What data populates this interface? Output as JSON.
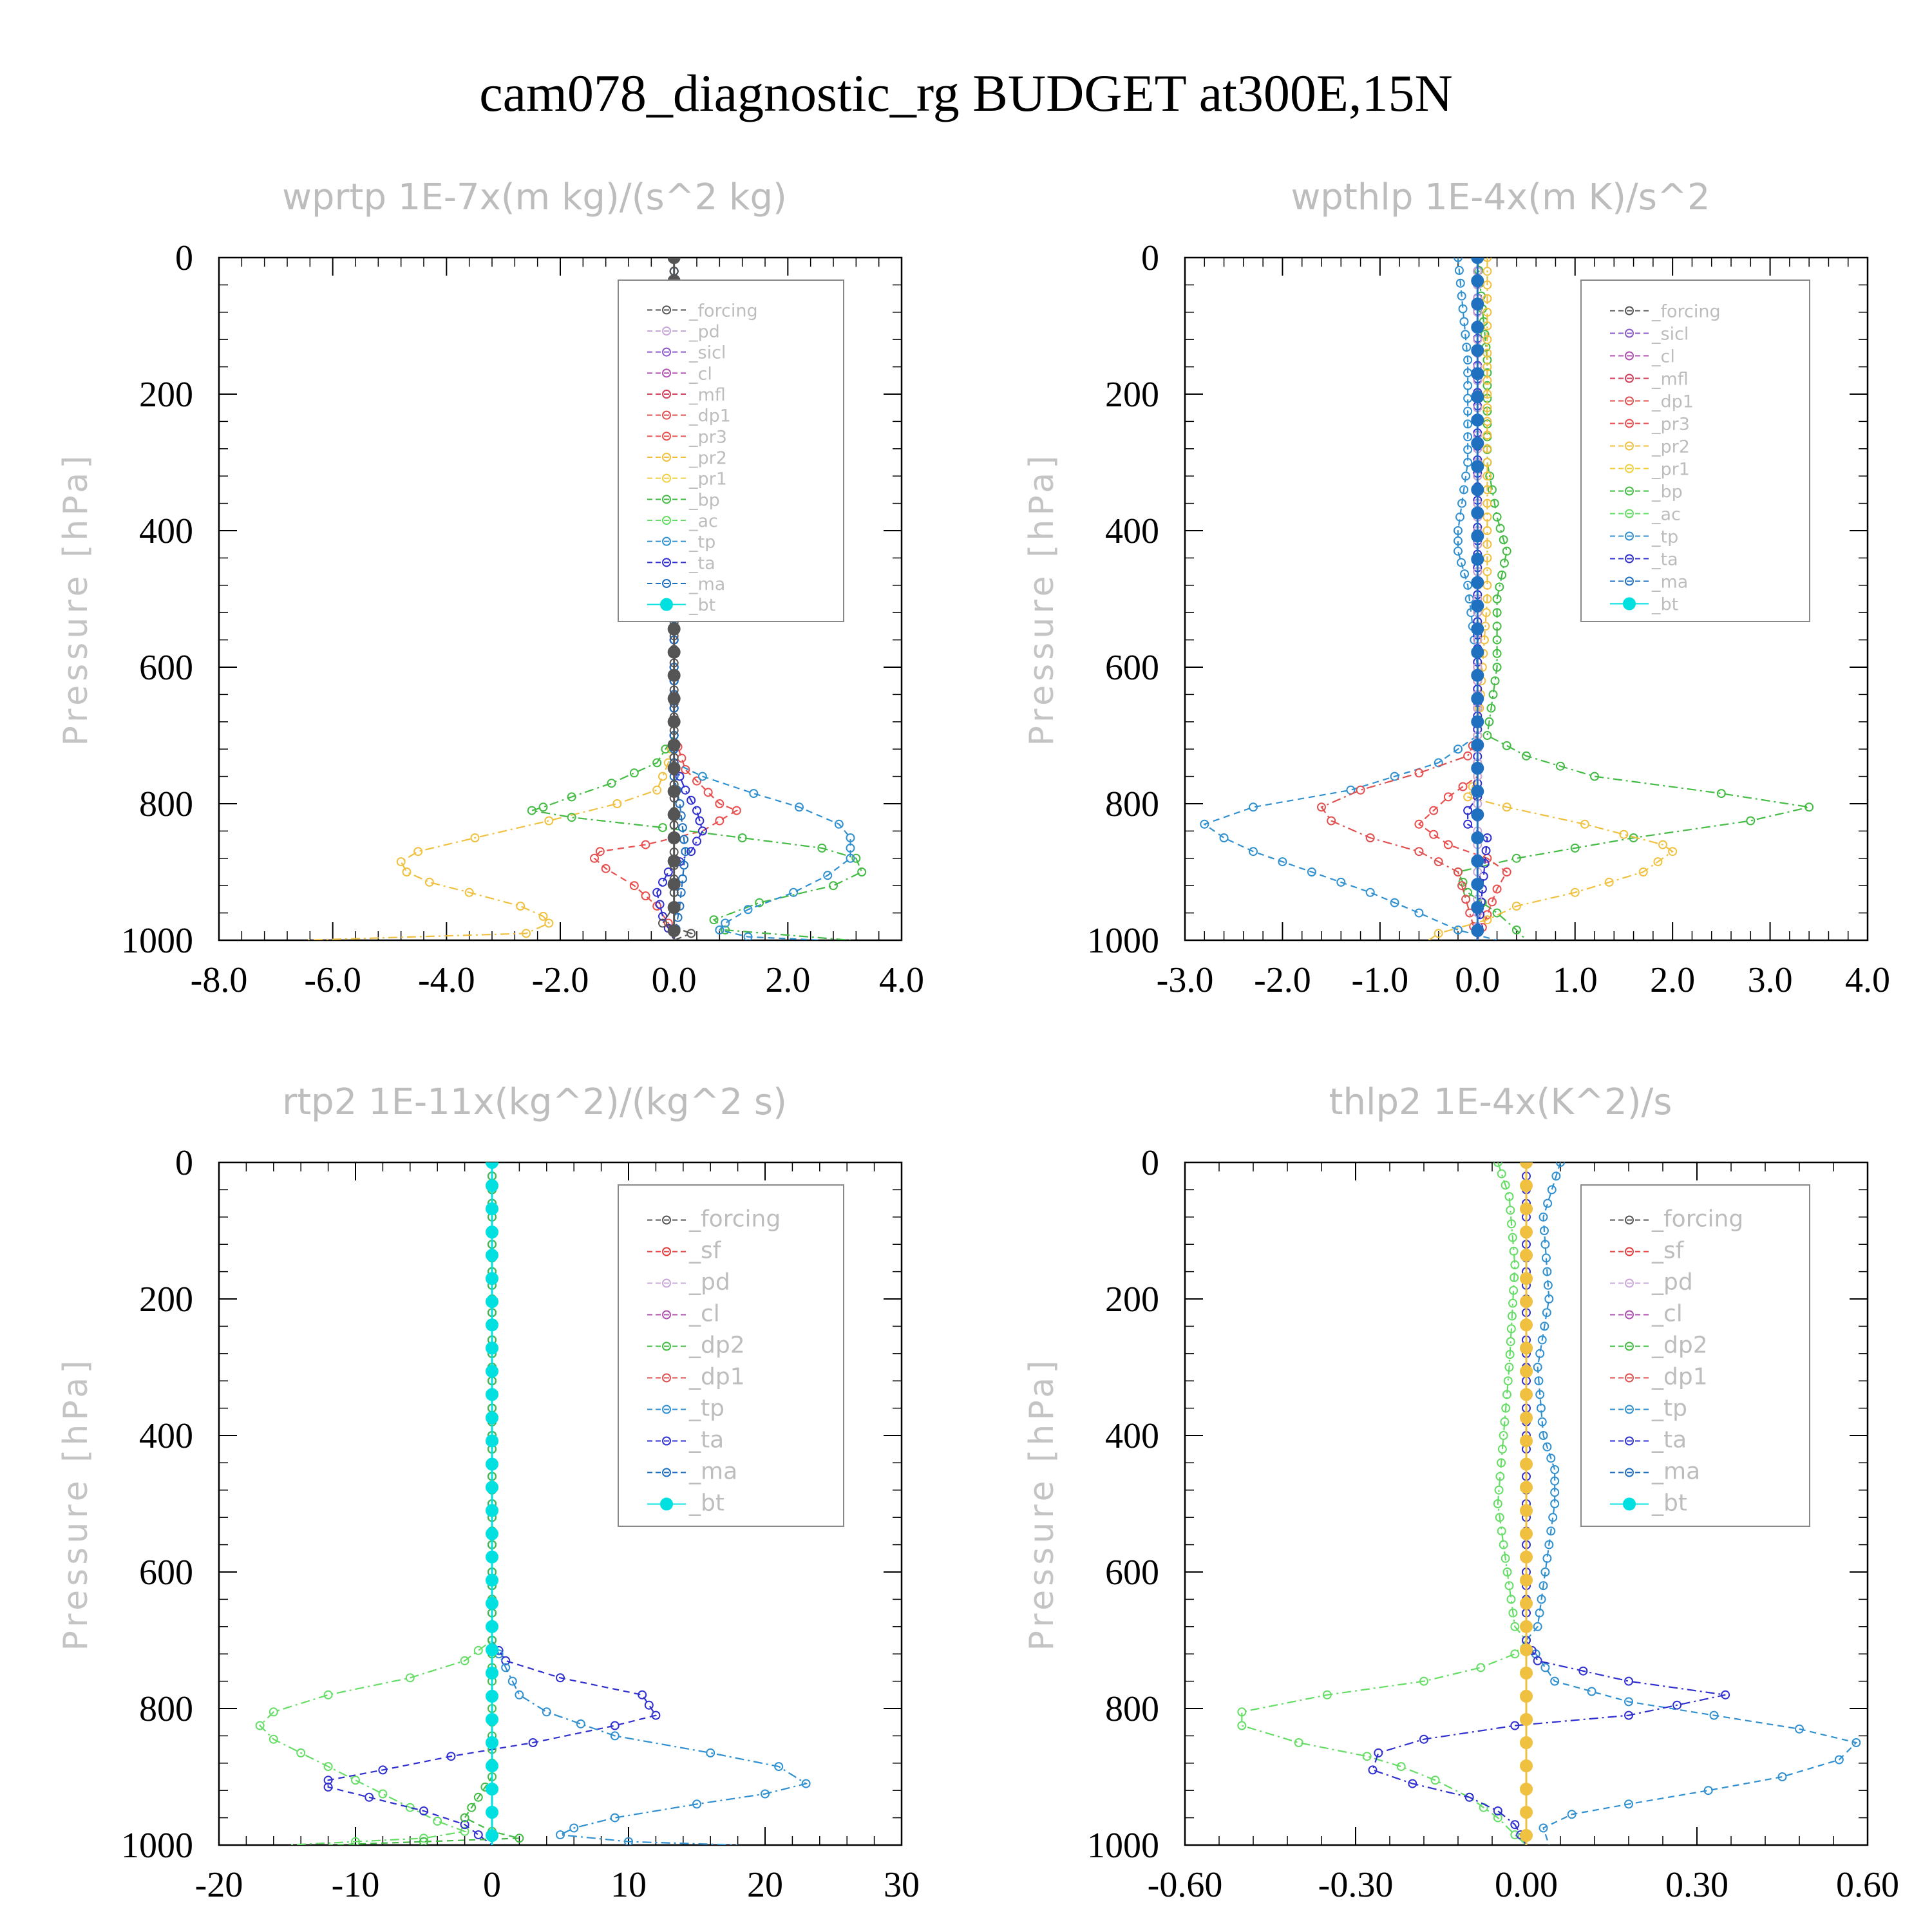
{
  "title": "cam078_diagnostic_rg  BUDGET at300E,15N",
  "colors": {
    "frame": "#000000",
    "_forcing": "#555555",
    "_forcing2": "#e04848",
    "_pd": "#c8a8d8",
    "_sicl": "#8a5ac8",
    "_cl": "#b050b0",
    "_mfl": "#d0405a",
    "_dp1": "#e05050",
    "_dp2": "#44bb44",
    "_sf": "#e04040",
    "_pr3": "#e85050",
    "_pr2": "#f0c040",
    "_pr1": "#f0d040",
    "_bp": "#44bb44",
    "_ac": "#66dd66",
    "_tp": "#3090d0",
    "_ta": "#3030d0",
    "_ma": "#2070c0",
    "_bt": "#00e0e0"
  },
  "chart_data": [
    {
      "id": "wprtp",
      "type": "line",
      "title": "wprtp   1E-7x(m kg)/(s^2 kg)",
      "ylabel": "Pressure [hPa]",
      "xlim": [
        -8,
        4
      ],
      "ylim": [
        0,
        1000
      ],
      "y_inverted": true,
      "xticks": [
        -8,
        -6,
        -4,
        -2,
        0,
        2,
        4
      ],
      "xtick_labels": [
        "-8.0",
        "-6.0",
        "-4.0",
        "-2.0",
        "0.0",
        "2.0",
        "4.0"
      ],
      "yticks": [
        0,
        200,
        400,
        600,
        800,
        1000
      ],
      "ytick_labels": [
        "0",
        "200",
        "400",
        "600",
        "800",
        "1000"
      ],
      "legend": {
        "position": "upper-right",
        "entries": [
          "_forcing",
          "_pd",
          "_sicl",
          "_cl",
          "_mfl",
          "_dp1",
          "_pr3",
          "_pr2",
          "_pr1",
          "_bp",
          "_ac",
          "_tp",
          "_ta",
          "_ma",
          "_bt"
        ]
      },
      "series": [
        {
          "name": "_pr2",
          "color_key": "_pr2",
          "x": [
            0,
            0,
            -0.1,
            -0.3,
            -1.0,
            -2.2,
            -3.5,
            -4.5,
            -4.8,
            -4.7,
            -4.3,
            -3.6,
            -2.7,
            -2.3,
            -2.2,
            -2.6,
            -6.5
          ],
          "y": [
            0,
            700,
            740,
            780,
            800,
            825,
            850,
            870,
            885,
            900,
            915,
            930,
            950,
            965,
            975,
            990,
            1000
          ]
        },
        {
          "name": "_pr3",
          "color_key": "_pr3",
          "x": [
            0,
            0,
            0.2,
            0.8,
            1.1,
            0.5,
            -0.5,
            -1.3,
            -1.4,
            -1.2,
            -0.7,
            -0.3,
            -0.1,
            0
          ],
          "y": [
            0,
            700,
            750,
            800,
            810,
            840,
            860,
            870,
            880,
            895,
            920,
            950,
            975,
            1000
          ]
        },
        {
          "name": "_bp",
          "color_key": "_bp",
          "x": [
            0,
            0,
            -0.3,
            -1.1,
            -1.8,
            -2.3,
            -2.5,
            -1.8,
            -0.2,
            1.2,
            2.6,
            3.2,
            3.3,
            2.8,
            1.5,
            0.7,
            0.9,
            3.1
          ],
          "y": [
            0,
            700,
            740,
            770,
            790,
            805,
            810,
            820,
            835,
            850,
            865,
            880,
            900,
            920,
            945,
            970,
            985,
            1000
          ]
        },
        {
          "name": "_tp",
          "color_key": "_tp",
          "x": [
            0,
            0,
            0.5,
            1.4,
            2.2,
            2.9,
            3.1,
            3.1,
            2.7,
            2.1,
            1.3,
            0.9,
            0.8,
            1.3,
            2.6
          ],
          "y": [
            0,
            740,
            760,
            785,
            805,
            830,
            850,
            880,
            905,
            930,
            955,
            975,
            985,
            995,
            1000
          ]
        },
        {
          "name": "_ta",
          "color_key": "_ta",
          "x": [
            0,
            0,
            0.2,
            0.4,
            0.5,
            0.3,
            -0.1,
            -0.3,
            -0.2,
            0
          ],
          "y": [
            0,
            740,
            780,
            810,
            840,
            870,
            900,
            930,
            965,
            1000
          ]
        },
        {
          "name": "_ma",
          "color_key": "_ma",
          "x": [
            0,
            0,
            0.1,
            0.2,
            0.1,
            0
          ],
          "y": [
            0,
            760,
            800,
            870,
            950,
            1000
          ]
        },
        {
          "name": "_forcing",
          "color_key": "_forcing",
          "x": [
            0,
            0,
            -0.2,
            0.3,
            0
          ],
          "y": [
            0,
            950,
            975,
            990,
            1000
          ]
        },
        {
          "name": "_bt",
          "color_key": "_forcing",
          "x": [
            0,
            0
          ],
          "y": [
            0,
            1000
          ]
        }
      ]
    },
    {
      "id": "wpthlp",
      "type": "line",
      "title": "wpthlp   1E-4x(m K)/s^2",
      "ylabel": "Pressure [hPa]",
      "xlim": [
        -3,
        4
      ],
      "ylim": [
        0,
        1000
      ],
      "y_inverted": true,
      "xticks": [
        -3,
        -2,
        -1,
        0,
        1,
        2,
        3,
        4
      ],
      "xtick_labels": [
        "-3.0",
        "-2.0",
        "-1.0",
        "0.0",
        "1.0",
        "2.0",
        "3.0",
        "4.0"
      ],
      "yticks": [
        0,
        200,
        400,
        600,
        800,
        1000
      ],
      "ytick_labels": [
        "0",
        "200",
        "400",
        "600",
        "800",
        "1000"
      ],
      "legend": {
        "position": "upper-right",
        "entries": [
          "_forcing",
          "_sicl",
          "_cl",
          "_mfl",
          "_dp1",
          "_pr3",
          "_pr2",
          "_pr1",
          "_bp",
          "_ac",
          "_tp",
          "_ta",
          "_ma",
          "_bt"
        ]
      },
      "series": [
        {
          "name": "_bp",
          "color_key": "_bp",
          "x": [
            0,
            0.1,
            0.1,
            0.2,
            0.3,
            0.2,
            0.2,
            0.1,
            0.5,
            1.2,
            2.5,
            3.4,
            2.8,
            1.6,
            0.4,
            -0.2,
            -0.1,
            0.2,
            0.4,
            0.5
          ],
          "y": [
            0,
            150,
            300,
            380,
            430,
            500,
            600,
            700,
            730,
            760,
            785,
            805,
            825,
            850,
            880,
            900,
            930,
            960,
            985,
            1000
          ]
        },
        {
          "name": "_tp",
          "color_key": "_tp",
          "x": [
            -0.2,
            -0.1,
            -0.1,
            -0.2,
            -0.2,
            -0.1,
            0,
            0,
            -0.4,
            -1.3,
            -2.3,
            -2.8,
            -2.6,
            -2.3,
            -1.7,
            -1.1,
            -0.6,
            -0.2,
            0.2
          ],
          "y": [
            0,
            150,
            300,
            400,
            430,
            480,
            600,
            700,
            740,
            780,
            805,
            830,
            850,
            870,
            900,
            930,
            960,
            985,
            1000
          ]
        },
        {
          "name": "_dp1",
          "color_key": "_dp1",
          "x": [
            0,
            0,
            -0.1,
            -0.6,
            -1.2,
            -1.6,
            -1.5,
            -1.1,
            -0.6,
            -0.2,
            0
          ],
          "y": [
            0,
            700,
            730,
            755,
            780,
            805,
            825,
            850,
            870,
            900,
            1000
          ]
        },
        {
          "name": "_pr3",
          "color_key": "_pr3",
          "x": [
            0,
            0,
            -0.3,
            -0.6,
            -0.3,
            0.1,
            0.3,
            0.2,
            0
          ],
          "y": [
            0,
            760,
            790,
            830,
            860,
            880,
            900,
            925,
            1000
          ]
        },
        {
          "name": "_pr2",
          "color_key": "_pr2",
          "x": [
            0.1,
            0.1,
            0.1,
            0,
            0,
            -0.1,
            0.3,
            1.1,
            1.9,
            2.0,
            1.7,
            1.0,
            0.4,
            0.1,
            -0.4,
            -0.5
          ],
          "y": [
            0,
            200,
            500,
            700,
            760,
            790,
            805,
            830,
            860,
            870,
            900,
            930,
            950,
            970,
            990,
            1000
          ]
        },
        {
          "name": "_ta",
          "color_key": "_ta",
          "x": [
            0,
            0,
            -0.1,
            -0.1,
            0.1,
            0
          ],
          "y": [
            0,
            790,
            810,
            830,
            850,
            1000
          ]
        },
        {
          "name": "_forcing",
          "color_key": "_pd",
          "x": [
            0,
            0
          ],
          "y": [
            0,
            1000
          ]
        },
        {
          "name": "_bt",
          "color_key": "_ma",
          "x": [
            0,
            0
          ],
          "y": [
            0,
            1000
          ]
        }
      ]
    },
    {
      "id": "rtp2",
      "type": "line",
      "title": "rtp2   1E-11x(kg^2)/(kg^2 s)",
      "ylabel": "Pressure [hPa]",
      "xlim": [
        -20,
        30
      ],
      "ylim": [
        0,
        1000
      ],
      "y_inverted": true,
      "xticks": [
        -20,
        -10,
        0,
        10,
        20,
        30
      ],
      "xtick_labels": [
        "-20",
        "-10",
        "0",
        "10",
        "20",
        "30"
      ],
      "yticks": [
        0,
        200,
        400,
        600,
        800,
        1000
      ],
      "ytick_labels": [
        "0",
        "200",
        "400",
        "600",
        "800",
        "1000"
      ],
      "legend": {
        "position": "upper-right",
        "entries": [
          "_forcing",
          "_sf",
          "_pd",
          "_cl",
          "_dp2",
          "_dp1",
          "_tp",
          "_ta",
          "_ma",
          "_bt"
        ]
      },
      "series": [
        {
          "name": "_dp1",
          "color_key": "_ac",
          "x": [
            0,
            0,
            -2,
            -6,
            -12,
            -16,
            -17,
            -16,
            -14,
            -12,
            -10,
            -8,
            -6,
            -4,
            -2,
            -5,
            -10,
            -15
          ],
          "y": [
            0,
            700,
            730,
            755,
            780,
            805,
            825,
            845,
            865,
            885,
            905,
            925,
            945,
            965,
            980,
            990,
            995,
            1000
          ]
        },
        {
          "name": "_ta",
          "color_key": "_ta",
          "x": [
            0,
            0,
            1,
            5,
            11,
            12,
            9,
            3,
            -3,
            -8,
            -12,
            -12,
            -9,
            -5,
            -2,
            -1,
            0
          ],
          "y": [
            0,
            700,
            730,
            755,
            780,
            810,
            825,
            850,
            870,
            890,
            905,
            915,
            930,
            950,
            970,
            985,
            1000
          ]
        },
        {
          "name": "_tp",
          "color_key": "_tp",
          "x": [
            0,
            0,
            1,
            2,
            4,
            9,
            16,
            21,
            23,
            20,
            15,
            9,
            6,
            5,
            10,
            18
          ],
          "y": [
            0,
            700,
            740,
            780,
            805,
            840,
            865,
            885,
            910,
            925,
            940,
            960,
            975,
            985,
            995,
            1000
          ]
        },
        {
          "name": "_dp2",
          "color_key": "_dp2",
          "x": [
            0,
            0,
            -1,
            -2,
            0,
            2,
            -5,
            -12
          ],
          "y": [
            0,
            900,
            930,
            960,
            980,
            990,
            995,
            1000
          ]
        },
        {
          "name": "_bt",
          "color_key": "_bt",
          "x": [
            0,
            0
          ],
          "y": [
            0,
            1000
          ]
        }
      ]
    },
    {
      "id": "thlp2",
      "type": "line",
      "title": "thlp2   1E-4x(K^2)/s",
      "ylabel": "Pressure [hPa]",
      "xlim": [
        -0.6,
        0.6
      ],
      "ylim": [
        0,
        1000
      ],
      "y_inverted": true,
      "xticks": [
        -0.6,
        -0.3,
        0,
        0.3,
        0.6
      ],
      "xtick_labels": [
        "-0.60",
        "-0.30",
        "0.00",
        "0.30",
        "0.60"
      ],
      "yticks": [
        0,
        200,
        400,
        600,
        800,
        1000
      ],
      "ytick_labels": [
        "0",
        "200",
        "400",
        "600",
        "800",
        "1000"
      ],
      "legend": {
        "position": "upper-right",
        "entries": [
          "_forcing",
          "_sf",
          "_pd",
          "_cl",
          "_dp2",
          "_dp1",
          "_tp",
          "_ta",
          "_ma",
          "_bt"
        ]
      },
      "series": [
        {
          "name": "_dp1",
          "color_key": "_ac",
          "x": [
            -0.05,
            -0.03,
            -0.02,
            -0.03,
            -0.04,
            -0.05,
            -0.04,
            -0.03,
            -0.02,
            0,
            -0.02,
            -0.08,
            -0.18,
            -0.35,
            -0.5,
            -0.5,
            -0.4,
            -0.28,
            -0.22,
            -0.16,
            -0.1,
            -0.05,
            -0.02,
            0
          ],
          "y": [
            0,
            50,
            150,
            300,
            400,
            500,
            560,
            620,
            680,
            700,
            720,
            740,
            760,
            780,
            805,
            825,
            850,
            870,
            885,
            905,
            930,
            960,
            985,
            1000
          ]
        },
        {
          "name": "_tp",
          "color_key": "_tp",
          "x": [
            0.06,
            0.03,
            0.04,
            0.02,
            0.03,
            0.05,
            0.05,
            0.04,
            0.03,
            0.02,
            0,
            0.05,
            0.18,
            0.33,
            0.48,
            0.58,
            0.55,
            0.45,
            0.32,
            0.18,
            0.08,
            0.03,
            0.04
          ],
          "y": [
            0,
            80,
            200,
            300,
            400,
            450,
            500,
            560,
            620,
            680,
            700,
            760,
            790,
            810,
            830,
            850,
            875,
            900,
            920,
            940,
            955,
            975,
            1000
          ]
        },
        {
          "name": "_ta",
          "color_key": "_ta",
          "x": [
            0,
            0,
            0.02,
            0.18,
            0.35,
            0.18,
            -0.02,
            -0.18,
            -0.26,
            -0.27,
            -0.2,
            -0.1,
            -0.05,
            -0.02,
            0
          ],
          "y": [
            0,
            700,
            730,
            760,
            780,
            810,
            825,
            845,
            865,
            890,
            910,
            930,
            950,
            970,
            1000
          ]
        },
        {
          "name": "_bt",
          "color_key": "_pr2",
          "x": [
            0,
            0
          ],
          "y": [
            0,
            1000
          ]
        }
      ]
    }
  ]
}
